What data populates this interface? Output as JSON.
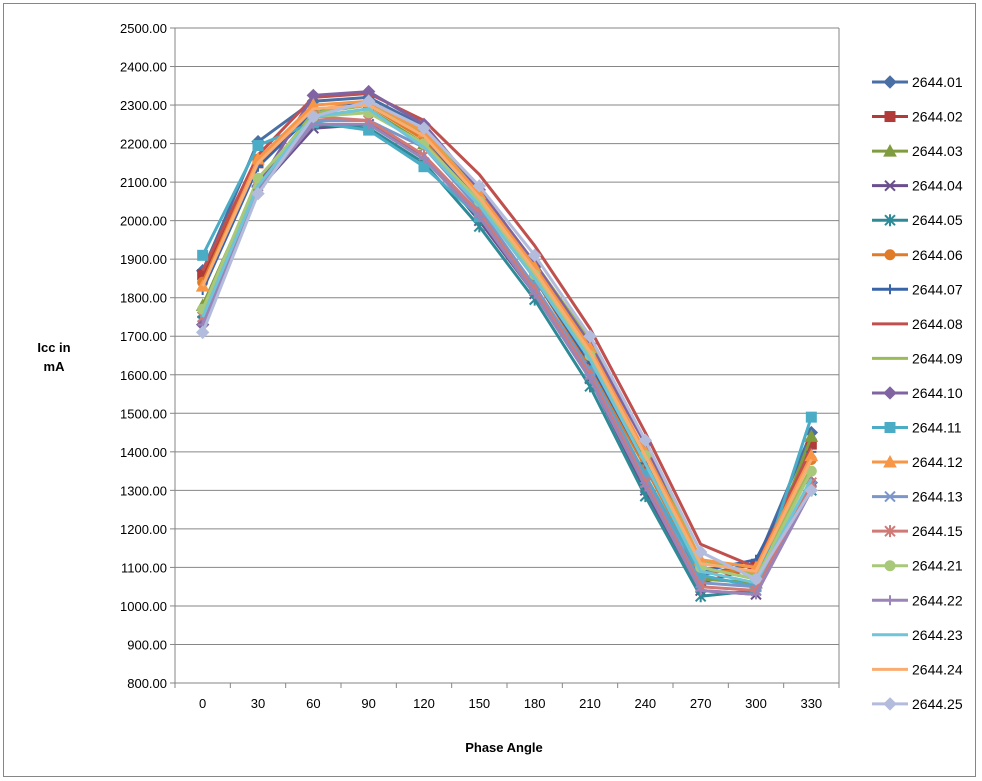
{
  "chart_data": {
    "type": "line",
    "title": "",
    "xlabel": "Phase Angle",
    "ylabel": "Icc in mA",
    "ylim": [
      800,
      2500
    ],
    "yticks": [
      "800.00",
      "900.00",
      "1000.00",
      "1100.00",
      "1200.00",
      "1300.00",
      "1400.00",
      "1500.00",
      "1600.00",
      "1700.00",
      "1800.00",
      "1900.00",
      "2000.00",
      "2100.00",
      "2200.00",
      "2300.00",
      "2400.00",
      "2500.00"
    ],
    "grid": true,
    "legend_position": "right",
    "categories": [
      "0",
      "30",
      "60",
      "90",
      "120",
      "150",
      "180",
      "210",
      "240",
      "270",
      "300",
      "330"
    ],
    "series": [
      {
        "name": "2644.01",
        "color": "#4a6fa5",
        "marker": "diamond",
        "values": [
          1870,
          2205,
          2310,
          2320,
          2245,
          2070,
          1880,
          1660,
          1400,
          1080,
          1110,
          1450
        ]
      },
      {
        "name": "2644.02",
        "color": "#b13b38",
        "marker": "square",
        "values": [
          1860,
          2150,
          2280,
          2300,
          2230,
          2060,
          1870,
          1650,
          1390,
          1060,
          1100,
          1420
        ]
      },
      {
        "name": "2644.03",
        "color": "#7f9c3e",
        "marker": "triangle",
        "values": [
          1780,
          2100,
          2270,
          2290,
          2200,
          2050,
          1860,
          1640,
          1380,
          1070,
          1060,
          1440
        ]
      },
      {
        "name": "2644.04",
        "color": "#6a4f8c",
        "marker": "x",
        "values": [
          1740,
          2080,
          2240,
          2250,
          2170,
          2000,
          1810,
          1590,
          1300,
          1040,
          1030,
          1310
        ]
      },
      {
        "name": "2644.05",
        "color": "#2f8a98",
        "marker": "star",
        "values": [
          1760,
          2080,
          2250,
          2240,
          2150,
          1985,
          1795,
          1570,
          1285,
          1025,
          1040,
          1300
        ]
      },
      {
        "name": "2644.06",
        "color": "#e07b28",
        "marker": "circle",
        "values": [
          1840,
          2160,
          2290,
          2300,
          2210,
          2040,
          1850,
          1620,
          1360,
          1090,
          1090,
          1380
        ]
      },
      {
        "name": "2644.07",
        "color": "#3a64a8",
        "marker": "plus",
        "values": [
          1820,
          2140,
          2280,
          2310,
          2220,
          2050,
          1850,
          1630,
          1370,
          1090,
          1120,
          1400
        ]
      },
      {
        "name": "2644.08",
        "color": "#c0504d",
        "marker": "none",
        "values": [
          1870,
          2170,
          2320,
          2330,
          2260,
          2120,
          1935,
          1720,
          1450,
          1160,
          1100,
          1410
        ]
      },
      {
        "name": "2644.09",
        "color": "#9bbb59",
        "marker": "none",
        "values": [
          1770,
          2100,
          2280,
          2300,
          2230,
          2080,
          1890,
          1690,
          1420,
          1120,
          1080,
          1360
        ]
      },
      {
        "name": "2644.10",
        "color": "#8064a2",
        "marker": "diamond",
        "values": [
          1730,
          2090,
          2325,
          2335,
          2250,
          2080,
          1890,
          1680,
          1420,
          1100,
          1070,
          1320
        ]
      },
      {
        "name": "2644.11",
        "color": "#4bacc6",
        "marker": "square",
        "values": [
          1910,
          2195,
          2255,
          2235,
          2140,
          2010,
          1830,
          1610,
          1340,
          1080,
          1050,
          1490
        ]
      },
      {
        "name": "2644.12",
        "color": "#f79646",
        "marker": "triangle",
        "values": [
          1830,
          2160,
          2300,
          2310,
          2230,
          2070,
          1880,
          1670,
          1400,
          1120,
          1100,
          1390
        ]
      },
      {
        "name": "2644.13",
        "color": "#7b96c8",
        "marker": "x",
        "values": [
          1750,
          2080,
          2260,
          2260,
          2190,
          2030,
          1830,
          1610,
          1330,
          1060,
          1050,
          1310
        ]
      },
      {
        "name": "2644.15",
        "color": "#d07a78",
        "marker": "star",
        "values": [
          1750,
          2090,
          2270,
          2260,
          2170,
          2020,
          1820,
          1600,
          1320,
          1050,
          1040,
          1320
        ]
      },
      {
        "name": "2644.21",
        "color": "#a9c97a",
        "marker": "circle",
        "values": [
          1770,
          2110,
          2270,
          2280,
          2200,
          2050,
          1860,
          1650,
          1390,
          1100,
          1070,
          1350
        ]
      },
      {
        "name": "2644.22",
        "color": "#9a84b8",
        "marker": "plus",
        "values": [
          1730,
          2080,
          2250,
          2250,
          2160,
          2010,
          1810,
          1590,
          1310,
          1040,
          1030,
          1300
        ]
      },
      {
        "name": "2644.23",
        "color": "#70c4d8",
        "marker": "none",
        "values": [
          1750,
          2090,
          2270,
          2290,
          2190,
          2040,
          1850,
          1640,
          1370,
          1090,
          1060,
          1330
        ]
      },
      {
        "name": "2644.24",
        "color": "#f9ad73",
        "marker": "none",
        "values": [
          1830,
          2150,
          2290,
          2300,
          2220,
          2060,
          1870,
          1660,
          1390,
          1110,
          1090,
          1380
        ]
      },
      {
        "name": "2644.25",
        "color": "#b3bcdc",
        "marker": "diamond",
        "values": [
          1710,
          2070,
          2270,
          2310,
          2240,
          2090,
          1910,
          1700,
          1430,
          1140,
          1070,
          1300
        ]
      }
    ]
  }
}
